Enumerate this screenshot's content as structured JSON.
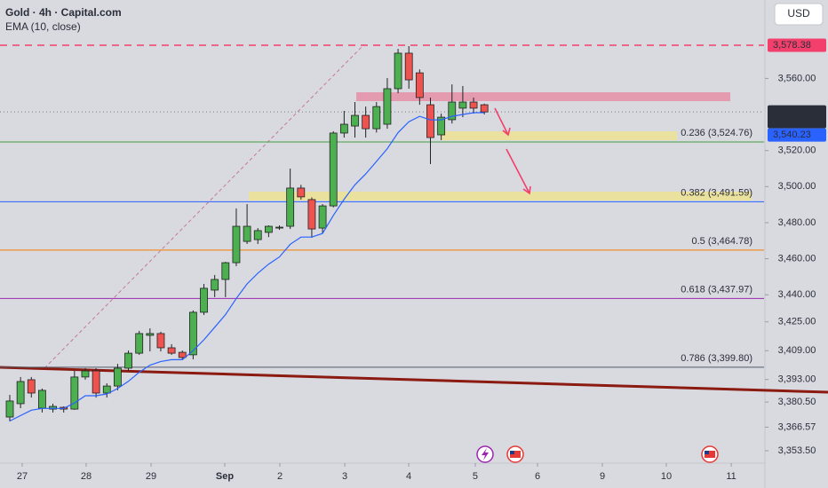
{
  "header": {
    "title": "Gold · 4h · Capital.com",
    "currency": "USD"
  },
  "chart_data": {
    "type": "candlestick",
    "up_color": "#4caf50",
    "down_color": "#ef5350",
    "border_color": "#222222",
    "open": [
      3372.2,
      3379.6,
      3392.9,
      3377.1,
      3376.6,
      3377.6,
      3376.6,
      3394.4,
      3397.8,
      3385.5,
      3389.4,
      3399.3,
      3407.6,
      3417.5,
      3418.5,
      3410.6,
      3408.1,
      3406.7,
      3430.3,
      3442.6,
      3448.5,
      3457.8,
      3469.6,
      3470.6,
      3474.6,
      3477,
      3478,
      3499.2,
      3492.8,
      3477,
      3489.3,
      3529.7,
      3533.6,
      3539.5,
      3532.1,
      3534.6,
      3554.3,
      3574,
      3563.1,
      3545.4,
      3528.7,
      3537.1,
      3543.5,
      3546.9,
      3545.4
    ],
    "high": [
      3384.5,
      3394.4,
      3394.4,
      3388,
      3379.6,
      3378.1,
      3397.8,
      3399.3,
      3399.3,
      3390.9,
      3401.7,
      3409.1,
      3420,
      3421.4,
      3419.5,
      3412.6,
      3409.1,
      3431.3,
      3446,
      3451,
      3458.3,
      3487.9,
      3490.3,
      3477,
      3478.5,
      3478.5,
      3510,
      3501,
      3494,
      3490.3,
      3530.7,
      3542,
      3546.9,
      3544.4,
      3546.9,
      3560.2,
      3576.4,
      3577.9,
      3565,
      3549.4,
      3540.5,
      3556.7,
      3555.8,
      3549.4,
      3546
    ],
    "low": [
      3369.8,
      3377.1,
      3383,
      3374.7,
      3374.7,
      3374.7,
      3376.2,
      3392.9,
      3383,
      3383,
      3387,
      3397.8,
      3406.7,
      3408.6,
      3408.6,
      3406.7,
      3404.2,
      3404.2,
      3428.8,
      3438.7,
      3438.7,
      3455.9,
      3468.2,
      3468.2,
      3472,
      3476,
      3476.5,
      3492.8,
      3471.6,
      3474,
      3488.5,
      3527.2,
      3527.2,
      3527.2,
      3530,
      3532.1,
      3551.8,
      3554.3,
      3545.4,
      3512.5,
      3525.8,
      3535,
      3538.5,
      3540.5,
      3540
    ],
    "close": [
      3381.1,
      3391.9,
      3385.5,
      3387,
      3378.1,
      3376.6,
      3394.4,
      3397.8,
      3385.5,
      3389.4,
      3399.3,
      3407.6,
      3418.5,
      3418.5,
      3410.6,
      3407.6,
      3405.2,
      3430.3,
      3443.6,
      3448.5,
      3457.8,
      3478,
      3478,
      3475.6,
      3478,
      3477.5,
      3499.2,
      3494.3,
      3476.5,
      3489.3,
      3529.7,
      3534.6,
      3539.5,
      3532.1,
      3544.4,
      3554.3,
      3574,
      3559.2,
      3549.4,
      3527.2,
      3538.5,
      3546.9,
      3546.9,
      3543.5,
      3541.4
    ],
    "series": [
      {
        "name": "EMA (10, close)",
        "color": "#2962ff",
        "values": [
          3370,
          3373,
          3376,
          3377,
          3377,
          3377,
          3380,
          3384,
          3384,
          3385,
          3388,
          3392,
          3397,
          3401,
          3403,
          3404,
          3404,
          3409,
          3415,
          3422,
          3429,
          3438,
          3446,
          3452,
          3457,
          3461,
          3468,
          3472,
          3472,
          3474,
          3484,
          3493,
          3501,
          3507,
          3514,
          3521,
          3530,
          3536,
          3539,
          3537,
          3537,
          3539,
          3540,
          3541,
          3541
        ]
      }
    ],
    "xlim": [
      -0.906,
      69.93
    ],
    "xticks": [
      {
        "value": 1.15,
        "label": "27"
      },
      {
        "value": 7.08,
        "label": "28"
      },
      {
        "value": 13.1,
        "label": "29"
      },
      {
        "value": 19.93,
        "label": "Sep"
      },
      {
        "value": 25.04,
        "label": "2"
      },
      {
        "value": 31.06,
        "label": "3"
      },
      {
        "value": 36.99,
        "label": "4"
      },
      {
        "value": 43.16,
        "label": "5"
      },
      {
        "value": 48.93,
        "label": "6"
      },
      {
        "value": 54.94,
        "label": "9"
      },
      {
        "value": 60.87,
        "label": "10"
      },
      {
        "value": 66.89,
        "label": "11"
      }
    ],
    "ylim": [
      3347.6,
      3603.5
    ],
    "yticks": [
      {
        "value": 3353.5,
        "label": "3,353.50"
      },
      {
        "value": 3366.57,
        "label": "3,366.57"
      },
      {
        "value": 3380.5,
        "label": "3,380.50"
      },
      {
        "value": 3393,
        "label": "3,393.00"
      },
      {
        "value": 3409,
        "label": "3,409.00"
      },
      {
        "value": 3425,
        "label": "3,425.00"
      },
      {
        "value": 3440,
        "label": "3,440.00"
      },
      {
        "value": 3460,
        "label": "3,460.00"
      },
      {
        "value": 3480,
        "label": "3,480.00"
      },
      {
        "value": 3500,
        "label": "3,500.00"
      },
      {
        "value": 3520,
        "label": "3,520.00"
      },
      {
        "value": 3560,
        "label": "3,560.00"
      }
    ],
    "levels": [
      {
        "label": "0.236 (3,524.76)",
        "value": 3524.76,
        "color": "#43a047"
      },
      {
        "label": "0.382 (3,491.59)",
        "value": 3491.59,
        "color": "#2962ff"
      },
      {
        "label": "0.5 (3,464.78)",
        "value": 3464.78,
        "color": "#f57c00"
      },
      {
        "label": "0.618 (3,437.97)",
        "value": 3437.97,
        "color": "#9c27b0"
      },
      {
        "label": "0.786 (3,399.80)",
        "value": 3399.8,
        "color": "#555a66"
      }
    ],
    "price_labels": [
      {
        "label": "3,578.38",
        "value": 3578.38,
        "color": "#f23f6b",
        "line": "dashed"
      },
      {
        "label": "3,541.41",
        "value": 3541.41,
        "color": "#2a2e39",
        "countdown": "02:51:27",
        "line": "dotted"
      },
      {
        "label": "3,540.23",
        "value": 3540.23,
        "color": "#2962ff"
      }
    ]
  }
}
